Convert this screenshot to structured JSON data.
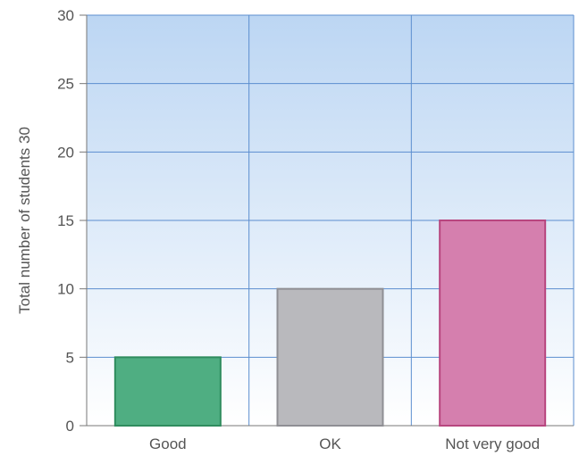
{
  "chart_data": {
    "type": "bar",
    "categories": [
      "Good",
      "OK",
      "Not very good"
    ],
    "values": [
      5,
      10,
      15
    ],
    "ylabel": "Total number of students 30",
    "xlabel": "",
    "ylim": [
      0,
      30
    ],
    "yticks": [
      0,
      5,
      10,
      15,
      20,
      25,
      30
    ],
    "grid": true,
    "bar_colors": [
      "#4fae82",
      "#b9b9bd",
      "#d57fae"
    ],
    "bar_edge_colors": [
      "#2f8c5e",
      "#8f8f94",
      "#b8467f"
    ],
    "background_gradient": [
      "#bcd6f3",
      "#ffffff"
    ],
    "grid_color": "#5b8ecf"
  }
}
